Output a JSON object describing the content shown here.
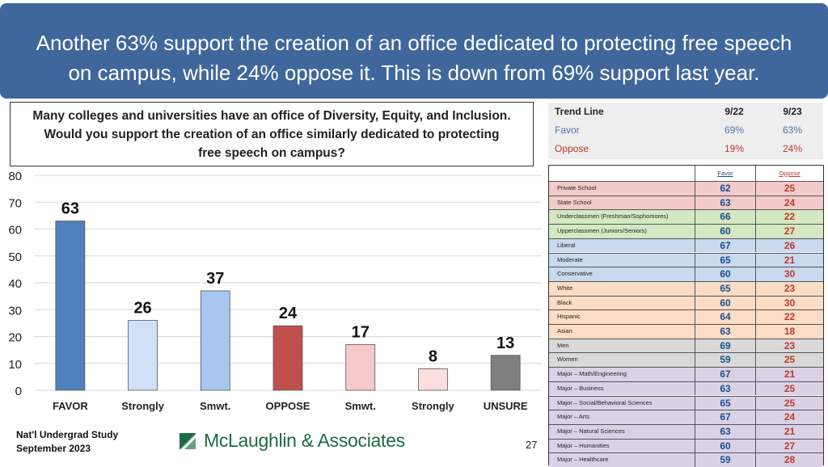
{
  "banner": {
    "line1": "Another 63% support the creation of an office dedicated to protecting free speech",
    "line2": "on campus, while 24% oppose it. This is down from 69% support last year."
  },
  "question": {
    "line1": "Many colleges and universities have an office of Diversity, Equity, and Inclusion.",
    "line2": "Would you support the creation of an office similarly dedicated to protecting",
    "line3": "free speech on campus?"
  },
  "trend": {
    "header": "Trend Line",
    "col1": "9/22",
    "col2": "9/23",
    "favor_label": "Favor",
    "favor_1": "69%",
    "favor_2": "63%",
    "oppose_label": "Oppose",
    "oppose_1": "19%",
    "oppose_2": "24%"
  },
  "table": {
    "header_favor": "Favor",
    "header_oppose": "Oppose",
    "rows": [
      {
        "label": "Private School",
        "favor": "62",
        "oppose": "25",
        "color": "#f2caca"
      },
      {
        "label": "State School",
        "favor": "63",
        "oppose": "24",
        "color": "#f2caca"
      },
      {
        "label": "Underclassmen (Freshman/Sophomores)",
        "favor": "66",
        "oppose": "22",
        "color": "#d4e8c2"
      },
      {
        "label": "Upperclassmen (Juniors/Seniors)",
        "favor": "60",
        "oppose": "27",
        "color": "#d4e8c2"
      },
      {
        "label": "Liberal",
        "favor": "67",
        "oppose": "26",
        "color": "#c9d9ee"
      },
      {
        "label": "Moderate",
        "favor": "65",
        "oppose": "21",
        "color": "#c9d9ee"
      },
      {
        "label": "Conservative",
        "favor": "60",
        "oppose": "30",
        "color": "#c9d9ee"
      },
      {
        "label": "White",
        "favor": "65",
        "oppose": "23",
        "color": "#fbdcc4"
      },
      {
        "label": "Black",
        "favor": "60",
        "oppose": "30",
        "color": "#fbdcc4"
      },
      {
        "label": "Hispanic",
        "favor": "64",
        "oppose": "22",
        "color": "#fbdcc4"
      },
      {
        "label": "Asian",
        "favor": "63",
        "oppose": "18",
        "color": "#fbdcc4"
      },
      {
        "label": "Men",
        "favor": "69",
        "oppose": "23",
        "color": "#d9d9d9"
      },
      {
        "label": "Women",
        "favor": "59",
        "oppose": "25",
        "color": "#d9d9d9"
      },
      {
        "label": "Major – Math/Engineering",
        "favor": "67",
        "oppose": "21",
        "color": "#d9d2e6"
      },
      {
        "label": "Major – Business",
        "favor": "63",
        "oppose": "25",
        "color": "#d9d2e6"
      },
      {
        "label": "Major – Social/Behavioral Sciences",
        "favor": "65",
        "oppose": "25",
        "color": "#d9d2e6"
      },
      {
        "label": "Major – Arts",
        "favor": "67",
        "oppose": "24",
        "color": "#d9d2e6"
      },
      {
        "label": "Major – Natural Sciences",
        "favor": "63",
        "oppose": "21",
        "color": "#d9d2e6"
      },
      {
        "label": "Major – Humanities",
        "favor": "60",
        "oppose": "27",
        "color": "#d9d2e6"
      },
      {
        "label": "Major – Healthcare",
        "favor": "59",
        "oppose": "28",
        "color": "#d9d2e6"
      }
    ]
  },
  "chart_data": {
    "type": "bar",
    "categories": [
      "FAVOR",
      "Strongly",
      "Smwt.",
      "OPPOSE",
      "Smwt.",
      "Strongly",
      "UNSURE"
    ],
    "values": [
      63,
      26,
      37,
      24,
      17,
      8,
      13
    ],
    "colors": [
      "#4f81bd",
      "#cfe0f7",
      "#a9c6f0",
      "#c0504d",
      "#f7c9c9",
      "#fbdede",
      "#7f7f7f"
    ],
    "ylim": [
      0,
      80
    ],
    "yticks": [
      0,
      10,
      20,
      30,
      40,
      50,
      60,
      70,
      80
    ],
    "grid": true,
    "xlabel": "",
    "ylabel": ""
  },
  "footer": {
    "line1": "Nat'l Undergrad Study",
    "line2": "September 2023",
    "logo_text": "McLaughlin & Associates",
    "page": "27"
  }
}
